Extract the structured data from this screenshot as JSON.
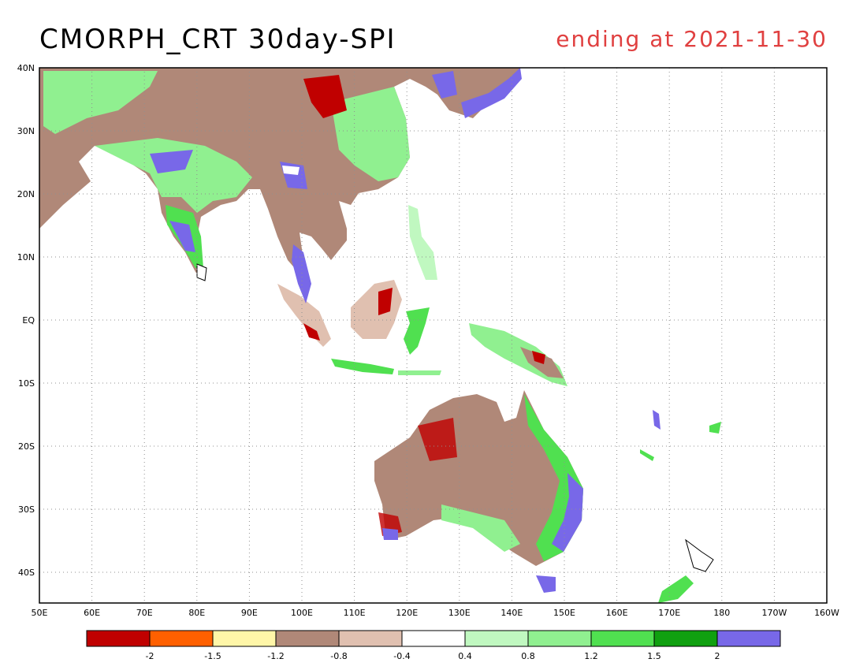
{
  "title": "CMORPH_CRT 30day-SPI",
  "subtitle": "ending at 2021-11-30",
  "subtitle_color": "#e04040",
  "map": {
    "lon_range": [
      "50E",
      "160W"
    ],
    "lat_range": [
      "45S",
      "40N"
    ],
    "lon_labels": [
      "50E",
      "60E",
      "70E",
      "80E",
      "90E",
      "100E",
      "110E",
      "120E",
      "130E",
      "140E",
      "150E",
      "160E",
      "170E",
      "180",
      "170W",
      "160W"
    ],
    "lat_labels": [
      "40N",
      "30N",
      "20N",
      "10N",
      "EQ",
      "10S",
      "20S",
      "30S",
      "40S"
    ],
    "gridlines": "dotted"
  },
  "legend": {
    "colors": [
      "#c00000",
      "#ff6000",
      "#fff6a8",
      "#b08878",
      "#e0c0b0",
      "#ffffff",
      "#c0f8c0",
      "#90f090",
      "#50e050",
      "#10a010",
      "#7868e8"
    ],
    "labels": [
      "-2",
      "-1.5",
      "-1.2",
      "-0.8",
      "-0.4",
      "0.4",
      "0.8",
      "1.2",
      "1.5",
      "2"
    ]
  }
}
